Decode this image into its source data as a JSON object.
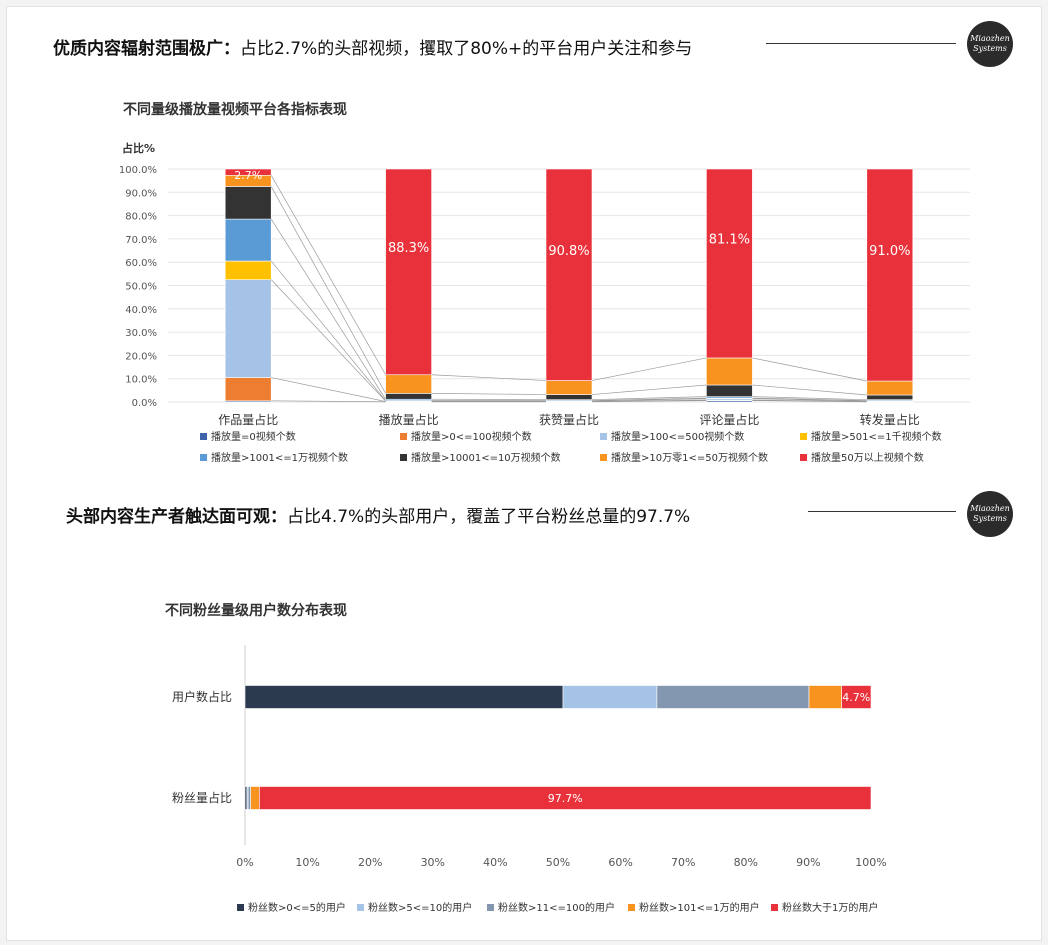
{
  "section1": {
    "heading_bold": "优质内容辐射范围极广：",
    "heading_rest": "占比2.7%的头部视频，攫取了80%+的平台用户关注和参与",
    "logo_line1": "Miaozhen",
    "logo_line2": "Systems"
  },
  "section2": {
    "heading_bold": "头部内容生产者触达面可观：",
    "heading_rest": "占比4.7%的头部用户，覆盖了平台粉丝总量的97.7%",
    "logo_line1": "Miaozhen",
    "logo_line2": "Systems"
  },
  "chart_data": [
    {
      "type": "bar",
      "stacked": true,
      "orientation": "vertical",
      "title": "不同量级播放量视频平台各指标表现",
      "ylabel": "占比%",
      "ylim": [
        0,
        100
      ],
      "yticks": [
        "0.0%",
        "10.0%",
        "20.0%",
        "30.0%",
        "40.0%",
        "50.0%",
        "60.0%",
        "70.0%",
        "80.0%",
        "90.0%",
        "100.0%"
      ],
      "grid": true,
      "legend_position": "bottom",
      "categories": [
        "作品量占比",
        "播放量占比",
        "获赞量占比",
        "评论量占比",
        "转发量占比"
      ],
      "series": [
        {
          "name": "播放量=0视频个数",
          "color": "#3f63a8",
          "values": [
            0.5,
            0.1,
            0.1,
            0.6,
            0.1
          ]
        },
        {
          "name": "播放量>0<=100视频个数",
          "color": "#ed7d31",
          "values": [
            10.0,
            0.1,
            0.1,
            0.2,
            0.1
          ]
        },
        {
          "name": "播放量>100<=500视频个数",
          "color": "#a5c3e6",
          "values": [
            42.0,
            0.2,
            0.2,
            0.6,
            0.2
          ]
        },
        {
          "name": "播放量>501<=1千视频个数",
          "color": "#ffc000",
          "values": [
            8.0,
            0.2,
            0.2,
            0.3,
            0.2
          ]
        },
        {
          "name": "播放量>1001<=1万视频个数",
          "color": "#5b9bd5",
          "values": [
            18.0,
            0.6,
            0.4,
            0.6,
            0.4
          ]
        },
        {
          "name": "播放量>10001<=10万视频个数",
          "color": "#333333",
          "values": [
            14.0,
            2.5,
            2.2,
            5.0,
            2.0
          ]
        },
        {
          "name": "播放量>10万零1<=50万视频个数",
          "color": "#f7931e",
          "values": [
            4.8,
            8.0,
            6.0,
            11.6,
            6.0
          ]
        },
        {
          "name": "播放量50万以上视频个数",
          "color": "#e8313a",
          "values": [
            2.7,
            88.3,
            90.8,
            81.1,
            91.0
          ]
        }
      ],
      "data_labels": [
        "2.7%",
        "88.3%",
        "90.8%",
        "81.1%",
        "91.0%"
      ]
    },
    {
      "type": "bar",
      "stacked": true,
      "orientation": "horizontal",
      "title": "不同粉丝量级用户数分布表现",
      "xlim": [
        0,
        100
      ],
      "xticks": [
        "0%",
        "10%",
        "20%",
        "30%",
        "40%",
        "50%",
        "60%",
        "70%",
        "80%",
        "90%",
        "100%"
      ],
      "grid": false,
      "legend_position": "bottom",
      "categories": [
        "用户数占比",
        "粉丝量占比"
      ],
      "series": [
        {
          "name": "粉丝数>0<=5的用户",
          "color": "#2c3a50",
          "values": [
            50.8,
            0.3
          ]
        },
        {
          "name": "粉丝数>5<=10的用户",
          "color": "#a5c3e6",
          "values": [
            15.0,
            0.2
          ]
        },
        {
          "name": "粉丝数>11<=100的用户",
          "color": "#8497b0",
          "values": [
            24.3,
            0.4
          ]
        },
        {
          "name": "粉丝数>101<=1万的用户",
          "color": "#f7931e",
          "values": [
            5.2,
            1.4
          ]
        },
        {
          "name": "粉丝数大于1万的用户",
          "color": "#e8313a",
          "values": [
            4.7,
            97.7
          ]
        }
      ],
      "data_labels": [
        "4.7%",
        "97.7%"
      ]
    }
  ]
}
